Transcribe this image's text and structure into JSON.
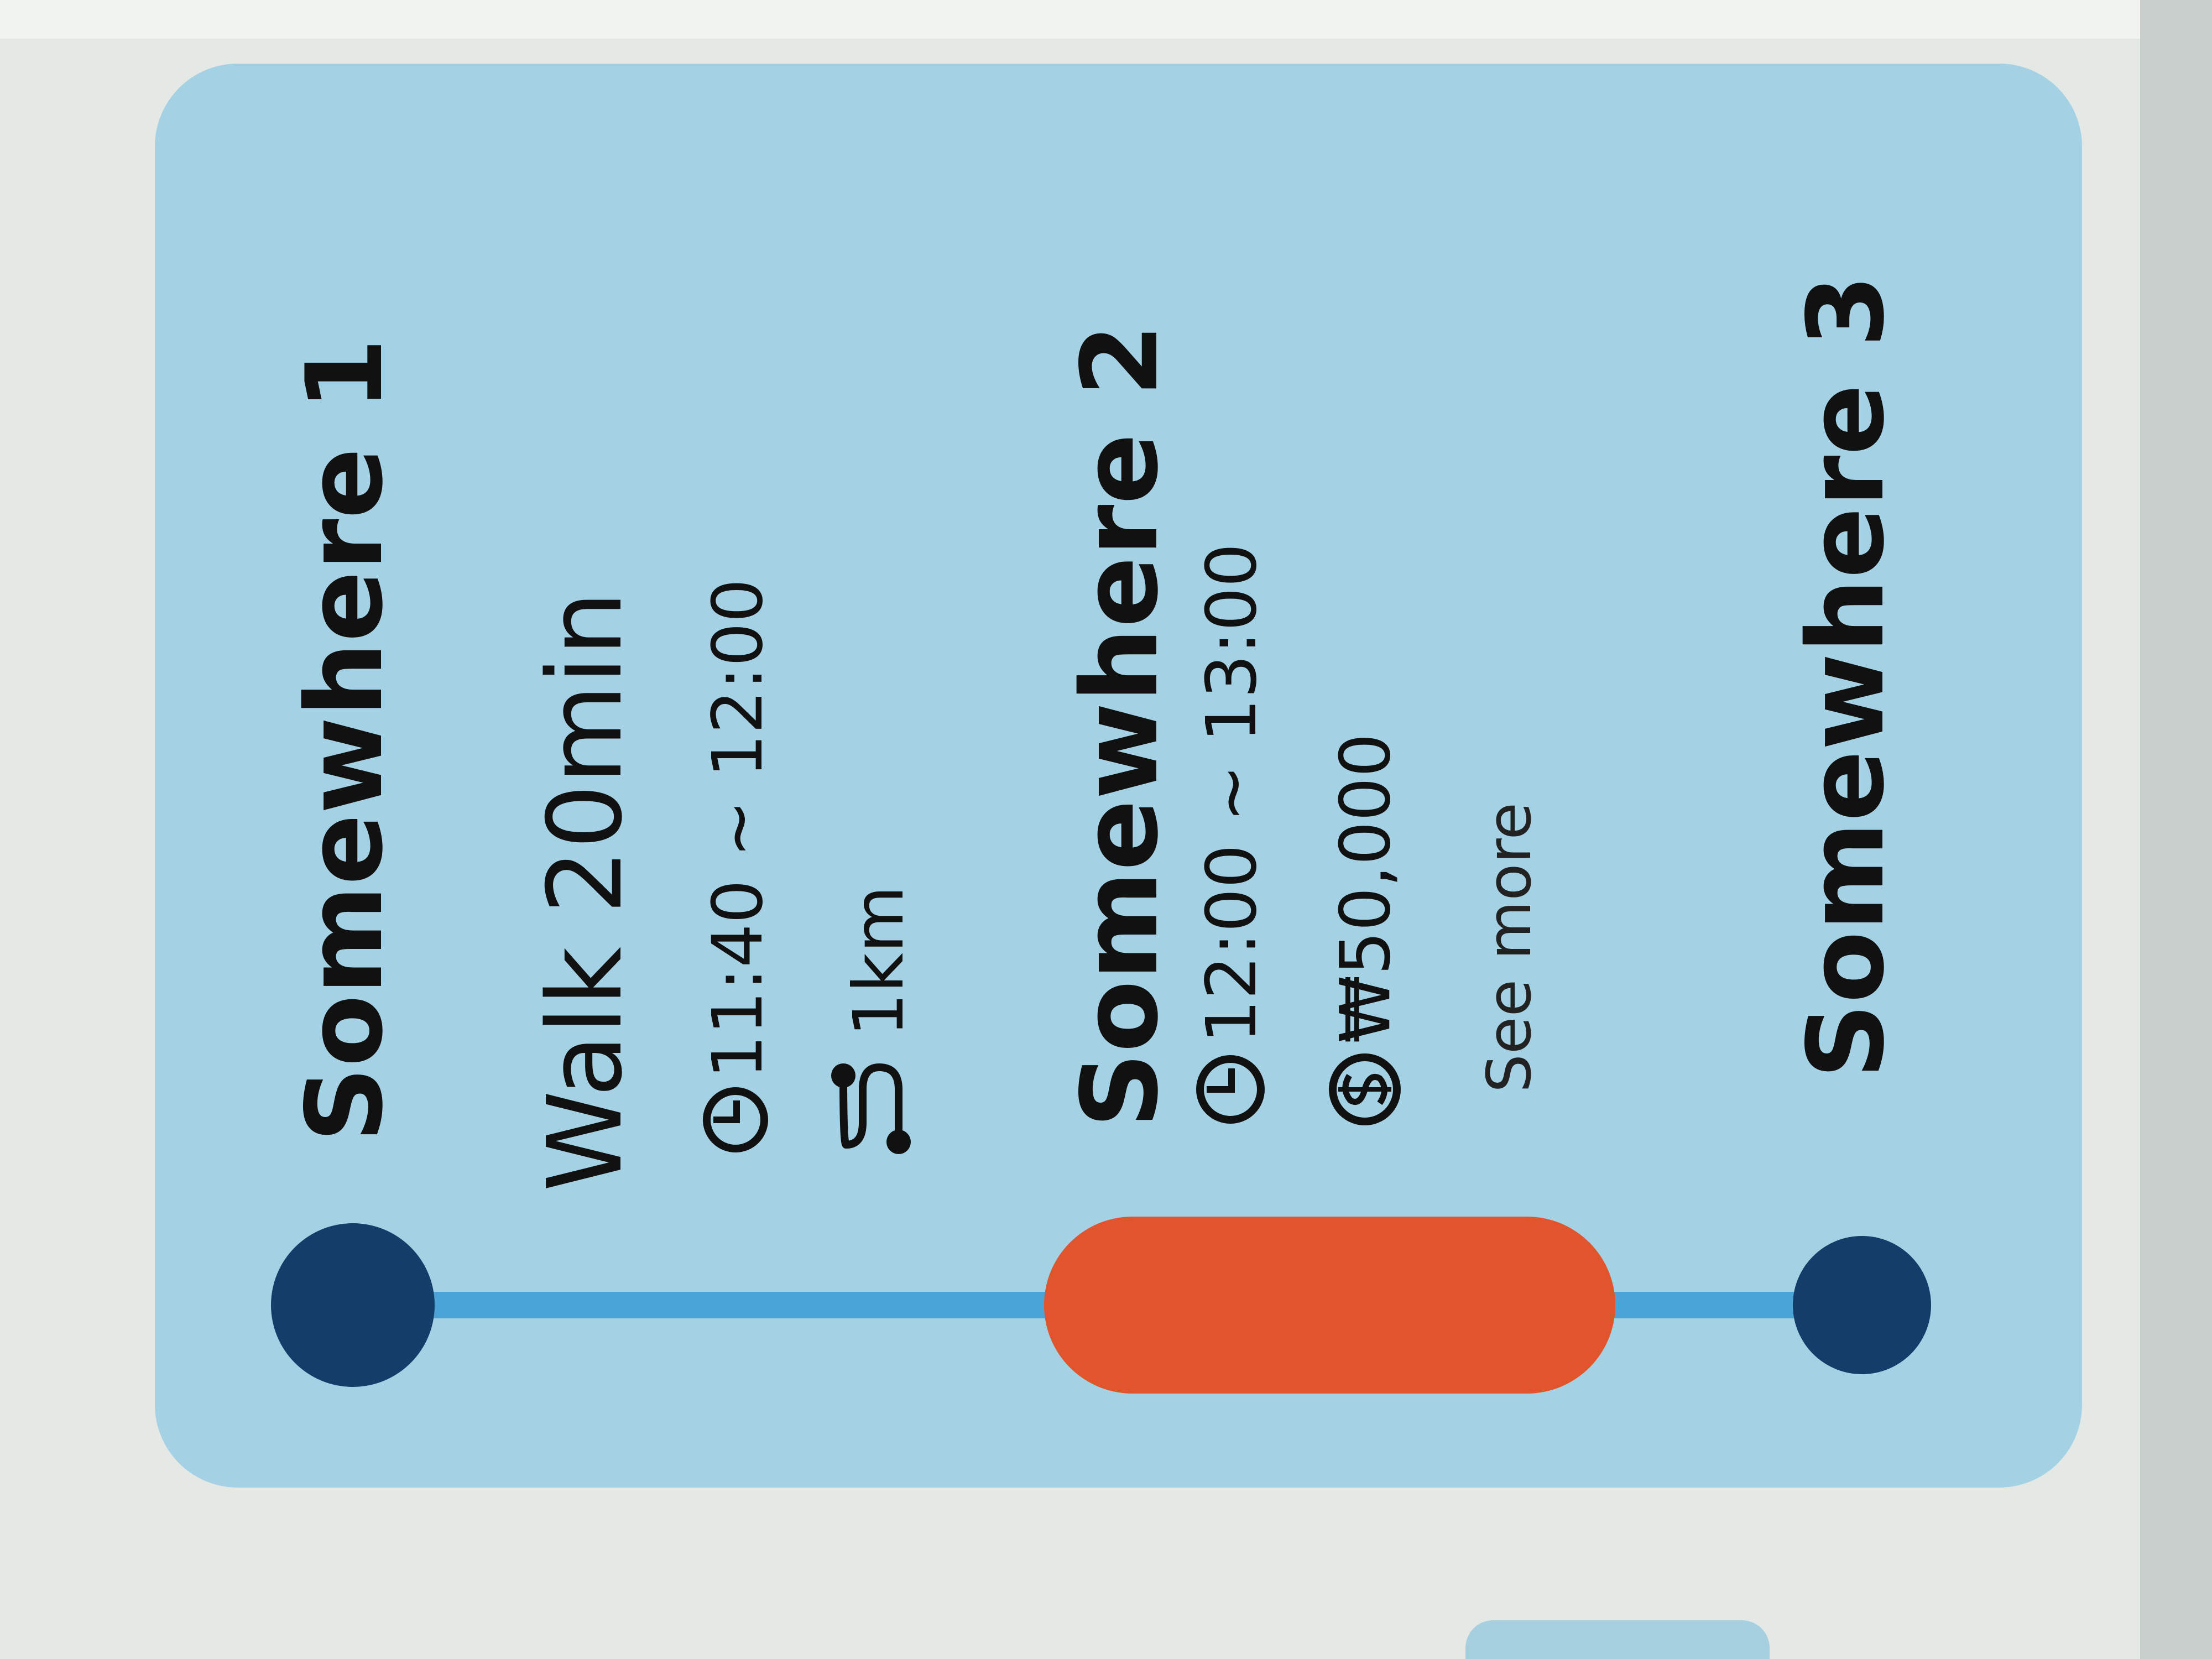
{
  "stops": [
    {
      "name": "Somewhere 1"
    },
    {
      "name": "Somewhere 2",
      "time": "12:00 ~ 13:00",
      "price": "₩50,000",
      "link": "See more"
    },
    {
      "name": "Somewhere 3"
    }
  ],
  "legs": [
    {
      "mode": "Walk 20min",
      "time": "11:40 ~ 12:00",
      "distance": "1km"
    }
  ]
}
